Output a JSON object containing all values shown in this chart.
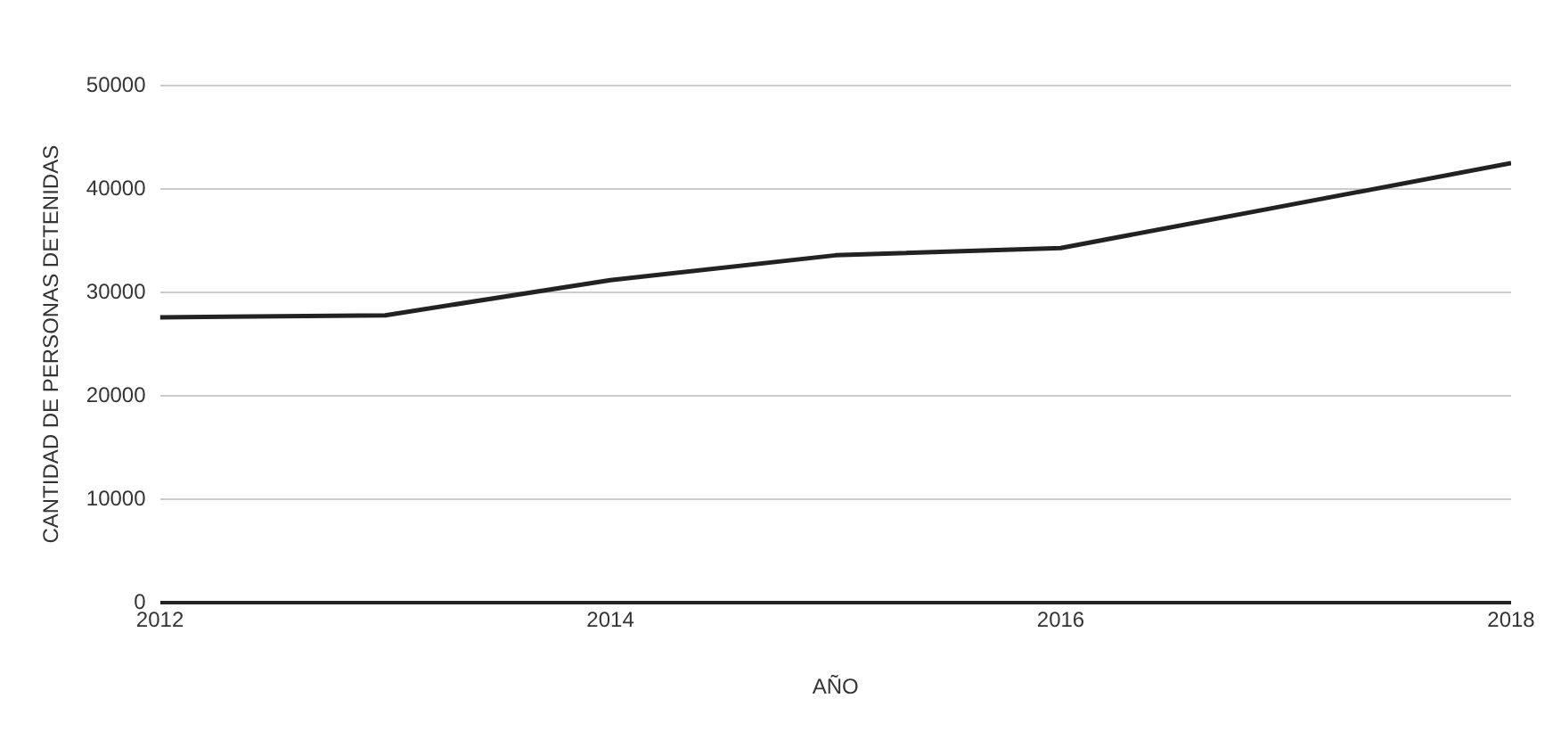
{
  "chart_data": {
    "type": "line",
    "xlabel": "AÑO",
    "ylabel": "CANTIDAD DE PERSONAS DETENIDAS",
    "x": [
      2012,
      2013,
      2014,
      2015,
      2016,
      2017,
      2018
    ],
    "series": [
      {
        "color": "#222222",
        "values": [
          27600,
          27800,
          31200,
          33600,
          34300,
          38400,
          42500
        ]
      }
    ],
    "xlim": [
      2012,
      2018
    ],
    "xticks": [
      2012,
      2014,
      2016,
      2018
    ],
    "ylim": [
      0,
      50000
    ],
    "yticks": [
      0,
      10000,
      20000,
      30000,
      40000,
      50000
    ],
    "grid": "y",
    "legend": false,
    "marker": "none",
    "line_style": "solid"
  }
}
